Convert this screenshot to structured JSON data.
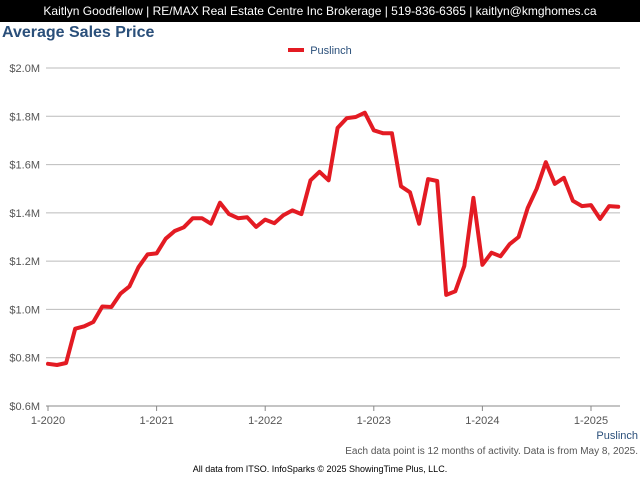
{
  "header": {
    "contact": "Kaitlyn Goodfellow | RE/MAX Real Estate Centre Inc Brokerage | 519-836-6365 | kaitlyn@kmghomes.ca"
  },
  "footer": {
    "note": "Each data point is 12 months of activity. Data is from May 8, 2025.",
    "source": "All data from ITSO. InfoSparks © 2025 ShowingTime Plus, LLC."
  },
  "colors": {
    "series": "#e31b23",
    "title": "#2a4f7a",
    "header_bg": "#000000"
  },
  "chart_data": {
    "type": "line",
    "title": "Average Sales Price",
    "legend_position": "top-center",
    "grid": true,
    "ylim": [
      0.6,
      2.0
    ],
    "y_unit": "millions of dollars",
    "yticks": [
      "$0.6M",
      "$0.8M",
      "$1.0M",
      "$1.2M",
      "$1.4M",
      "$1.6M",
      "$1.8M",
      "$2.0M"
    ],
    "ytick_values": [
      0.6,
      0.8,
      1.0,
      1.2,
      1.4,
      1.6,
      1.8,
      2.0
    ],
    "xticks": [
      "1-2020",
      "1-2021",
      "1-2022",
      "1-2023",
      "1-2024",
      "1-2025"
    ],
    "x_label_below": "Puslinch",
    "series": [
      {
        "name": "Puslinch",
        "start": "1-2020",
        "interval": "monthly",
        "values": [
          0.775,
          0.77,
          0.778,
          0.92,
          0.93,
          0.948,
          1.012,
          1.01,
          1.065,
          1.095,
          1.175,
          1.228,
          1.232,
          1.293,
          1.325,
          1.34,
          1.378,
          1.378,
          1.355,
          1.442,
          1.395,
          1.378,
          1.382,
          1.342,
          1.372,
          1.357,
          1.39,
          1.41,
          1.395,
          1.535,
          1.57,
          1.535,
          1.752,
          1.792,
          1.797,
          1.815,
          1.742,
          1.73,
          1.73,
          1.51,
          1.485,
          1.355,
          1.54,
          1.532,
          1.06,
          1.075,
          1.18,
          1.462,
          1.185,
          1.235,
          1.22,
          1.27,
          1.3,
          1.42,
          1.5,
          1.61,
          1.52,
          1.545,
          1.45,
          1.428,
          1.432,
          1.375,
          1.428,
          1.425
        ]
      }
    ]
  }
}
